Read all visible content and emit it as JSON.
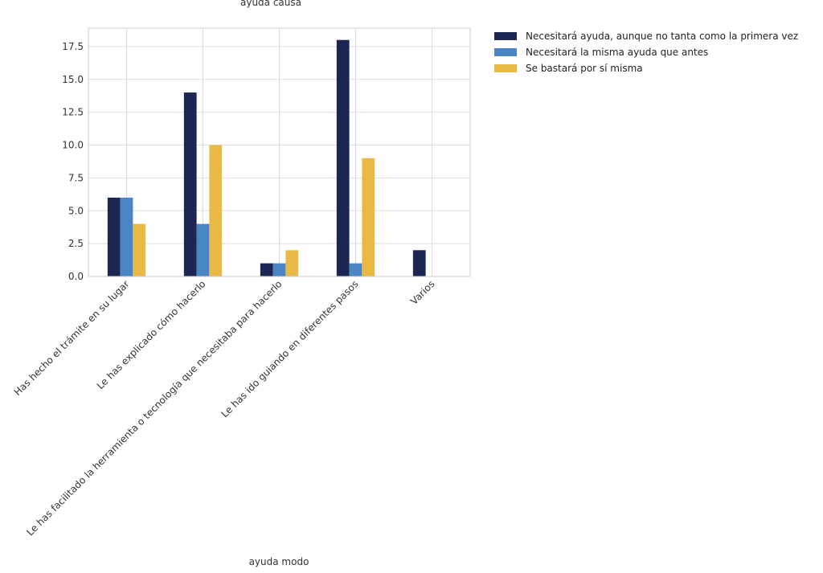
{
  "chart_data": {
    "type": "bar",
    "title": "ayuda causa",
    "xlabel": "ayuda modo",
    "ylabel": "",
    "ylim": [
      0,
      18.9
    ],
    "yticks": [
      0.0,
      2.5,
      5.0,
      7.5,
      10.0,
      12.5,
      15.0,
      17.5
    ],
    "ytick_labels": [
      "0.0",
      "2.5",
      "5.0",
      "7.5",
      "10.0",
      "12.5",
      "15.0",
      "17.5"
    ],
    "grid": true,
    "legend_position": "outside-top-right",
    "categories": [
      "Has hecho el trámite en su lugar",
      "Le has explicado cómo hacerlo",
      "Le has facilitado la herramienta o tecnología que necesitaba para hacerlo",
      "Le has ido guiando en diferentes pasos",
      "Varios"
    ],
    "series": [
      {
        "name": "Necesitará ayuda, aunque no tanta como la primera vez",
        "color": "#1b2752",
        "values": [
          6,
          14,
          1,
          18,
          2
        ]
      },
      {
        "name": "Necesitará la misma ayuda que antes",
        "color": "#4a86c6",
        "values": [
          6,
          4,
          1,
          1,
          0
        ]
      },
      {
        "name": "Se bastará por sí misma",
        "color": "#e8b945",
        "values": [
          4,
          10,
          2,
          9,
          0
        ]
      }
    ]
  }
}
